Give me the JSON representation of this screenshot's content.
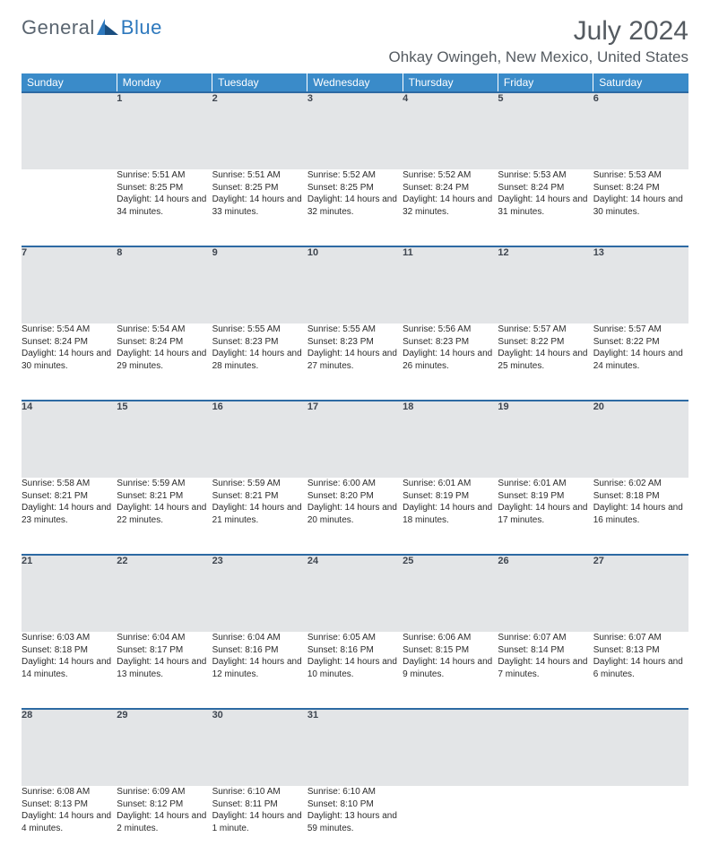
{
  "brand": {
    "part1": "General",
    "part2": "Blue"
  },
  "title": "July 2024",
  "location": "Ohkay Owingeh, New Mexico, United States",
  "header_bg": "#3a8bc9",
  "border_color": "#2d6aa3",
  "daynum_bg": "#e3e5e7",
  "weekdays": [
    "Sunday",
    "Monday",
    "Tuesday",
    "Wednesday",
    "Thursday",
    "Friday",
    "Saturday"
  ],
  "weeks": [
    [
      null,
      {
        "n": "1",
        "sr": "Sunrise: 5:51 AM",
        "ss": "Sunset: 8:25 PM",
        "dl": "Daylight: 14 hours and 34 minutes."
      },
      {
        "n": "2",
        "sr": "Sunrise: 5:51 AM",
        "ss": "Sunset: 8:25 PM",
        "dl": "Daylight: 14 hours and 33 minutes."
      },
      {
        "n": "3",
        "sr": "Sunrise: 5:52 AM",
        "ss": "Sunset: 8:25 PM",
        "dl": "Daylight: 14 hours and 32 minutes."
      },
      {
        "n": "4",
        "sr": "Sunrise: 5:52 AM",
        "ss": "Sunset: 8:24 PM",
        "dl": "Daylight: 14 hours and 32 minutes."
      },
      {
        "n": "5",
        "sr": "Sunrise: 5:53 AM",
        "ss": "Sunset: 8:24 PM",
        "dl": "Daylight: 14 hours and 31 minutes."
      },
      {
        "n": "6",
        "sr": "Sunrise: 5:53 AM",
        "ss": "Sunset: 8:24 PM",
        "dl": "Daylight: 14 hours and 30 minutes."
      }
    ],
    [
      {
        "n": "7",
        "sr": "Sunrise: 5:54 AM",
        "ss": "Sunset: 8:24 PM",
        "dl": "Daylight: 14 hours and 30 minutes."
      },
      {
        "n": "8",
        "sr": "Sunrise: 5:54 AM",
        "ss": "Sunset: 8:24 PM",
        "dl": "Daylight: 14 hours and 29 minutes."
      },
      {
        "n": "9",
        "sr": "Sunrise: 5:55 AM",
        "ss": "Sunset: 8:23 PM",
        "dl": "Daylight: 14 hours and 28 minutes."
      },
      {
        "n": "10",
        "sr": "Sunrise: 5:55 AM",
        "ss": "Sunset: 8:23 PM",
        "dl": "Daylight: 14 hours and 27 minutes."
      },
      {
        "n": "11",
        "sr": "Sunrise: 5:56 AM",
        "ss": "Sunset: 8:23 PM",
        "dl": "Daylight: 14 hours and 26 minutes."
      },
      {
        "n": "12",
        "sr": "Sunrise: 5:57 AM",
        "ss": "Sunset: 8:22 PM",
        "dl": "Daylight: 14 hours and 25 minutes."
      },
      {
        "n": "13",
        "sr": "Sunrise: 5:57 AM",
        "ss": "Sunset: 8:22 PM",
        "dl": "Daylight: 14 hours and 24 minutes."
      }
    ],
    [
      {
        "n": "14",
        "sr": "Sunrise: 5:58 AM",
        "ss": "Sunset: 8:21 PM",
        "dl": "Daylight: 14 hours and 23 minutes."
      },
      {
        "n": "15",
        "sr": "Sunrise: 5:59 AM",
        "ss": "Sunset: 8:21 PM",
        "dl": "Daylight: 14 hours and 22 minutes."
      },
      {
        "n": "16",
        "sr": "Sunrise: 5:59 AM",
        "ss": "Sunset: 8:21 PM",
        "dl": "Daylight: 14 hours and 21 minutes."
      },
      {
        "n": "17",
        "sr": "Sunrise: 6:00 AM",
        "ss": "Sunset: 8:20 PM",
        "dl": "Daylight: 14 hours and 20 minutes."
      },
      {
        "n": "18",
        "sr": "Sunrise: 6:01 AM",
        "ss": "Sunset: 8:19 PM",
        "dl": "Daylight: 14 hours and 18 minutes."
      },
      {
        "n": "19",
        "sr": "Sunrise: 6:01 AM",
        "ss": "Sunset: 8:19 PM",
        "dl": "Daylight: 14 hours and 17 minutes."
      },
      {
        "n": "20",
        "sr": "Sunrise: 6:02 AM",
        "ss": "Sunset: 8:18 PM",
        "dl": "Daylight: 14 hours and 16 minutes."
      }
    ],
    [
      {
        "n": "21",
        "sr": "Sunrise: 6:03 AM",
        "ss": "Sunset: 8:18 PM",
        "dl": "Daylight: 14 hours and 14 minutes."
      },
      {
        "n": "22",
        "sr": "Sunrise: 6:04 AM",
        "ss": "Sunset: 8:17 PM",
        "dl": "Daylight: 14 hours and 13 minutes."
      },
      {
        "n": "23",
        "sr": "Sunrise: 6:04 AM",
        "ss": "Sunset: 8:16 PM",
        "dl": "Daylight: 14 hours and 12 minutes."
      },
      {
        "n": "24",
        "sr": "Sunrise: 6:05 AM",
        "ss": "Sunset: 8:16 PM",
        "dl": "Daylight: 14 hours and 10 minutes."
      },
      {
        "n": "25",
        "sr": "Sunrise: 6:06 AM",
        "ss": "Sunset: 8:15 PM",
        "dl": "Daylight: 14 hours and 9 minutes."
      },
      {
        "n": "26",
        "sr": "Sunrise: 6:07 AM",
        "ss": "Sunset: 8:14 PM",
        "dl": "Daylight: 14 hours and 7 minutes."
      },
      {
        "n": "27",
        "sr": "Sunrise: 6:07 AM",
        "ss": "Sunset: 8:13 PM",
        "dl": "Daylight: 14 hours and 6 minutes."
      }
    ],
    [
      {
        "n": "28",
        "sr": "Sunrise: 6:08 AM",
        "ss": "Sunset: 8:13 PM",
        "dl": "Daylight: 14 hours and 4 minutes."
      },
      {
        "n": "29",
        "sr": "Sunrise: 6:09 AM",
        "ss": "Sunset: 8:12 PM",
        "dl": "Daylight: 14 hours and 2 minutes."
      },
      {
        "n": "30",
        "sr": "Sunrise: 6:10 AM",
        "ss": "Sunset: 8:11 PM",
        "dl": "Daylight: 14 hours and 1 minute."
      },
      {
        "n": "31",
        "sr": "Sunrise: 6:10 AM",
        "ss": "Sunset: 8:10 PM",
        "dl": "Daylight: 13 hours and 59 minutes."
      },
      null,
      null,
      null
    ]
  ]
}
